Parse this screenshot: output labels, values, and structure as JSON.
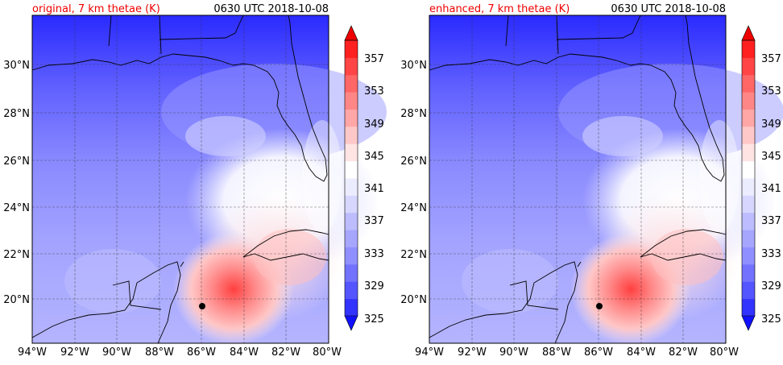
{
  "panels": [
    {
      "title": "original, 7 km thetae (K)",
      "time": "0630 UTC 2018-10-08",
      "lon_ticks": [
        "94°W",
        "92°W",
        "90°W",
        "88°W",
        "86°W",
        "84°W",
        "82°W",
        "80°W"
      ],
      "lat_ticks": [
        "30°N",
        "28°N",
        "26°N",
        "24°N",
        "22°N",
        "20°N"
      ]
    },
    {
      "title": "enhanced, 7 km thetae (K)",
      "time": "0630 UTC 2018-10-08",
      "lon_ticks": [
        "94°W",
        "92°W",
        "90°W",
        "88°W",
        "86°W",
        "84°W",
        "82°W",
        "80°W"
      ],
      "lat_ticks": [
        "30°N",
        "28°N",
        "26°N",
        "24°N",
        "22°N",
        "20°N"
      ]
    }
  ],
  "colorbar": {
    "labels": [
      "357",
      "353",
      "349",
      "345",
      "341",
      "337",
      "333",
      "329",
      "325"
    ],
    "levels": [
      325,
      327,
      329,
      331,
      333,
      335,
      337,
      339,
      341,
      343,
      345,
      347,
      349,
      351,
      353,
      355,
      357
    ],
    "colors": [
      "#1010ff",
      "#3333ff",
      "#5555ff",
      "#7272ff",
      "#8f8fff",
      "#a6a6ff",
      "#bcbcff",
      "#d6d6ff",
      "#ececff",
      "#ffffff",
      "#ffe4e4",
      "#ffc8c8",
      "#ffa6a6",
      "#ff8686",
      "#ff6666",
      "#ff4545",
      "#ff2020",
      "#ee0000"
    ]
  },
  "colors": {
    "title_red": "#ee0000"
  },
  "map_extent": {
    "lon_min": -94,
    "lon_max": -80,
    "lat_min": 18.2,
    "lat_max": 32
  }
}
